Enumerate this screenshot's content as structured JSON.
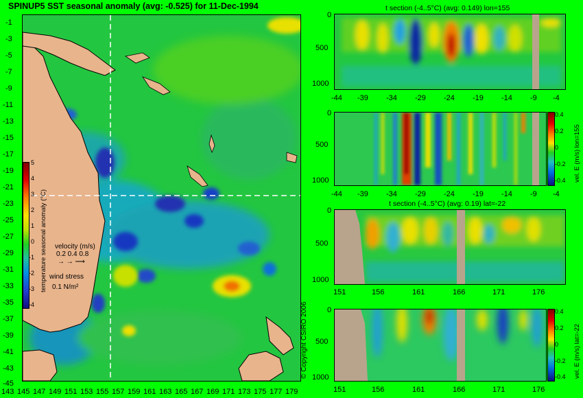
{
  "title": "SPINUP5 SST seasonal anomaly (avg: -0.525) for 11-Dec-1994",
  "colors": {
    "page_bg": "#00ff00",
    "ocean_base": "#23c640",
    "land": "#e8b48c",
    "cold": "#1e2ab4",
    "cool": "#00a0e0",
    "warm": "#ffe000",
    "hot": "#e02000"
  },
  "map": {
    "y_ticks": [
      "-1",
      "-3",
      "-5",
      "-7",
      "-9",
      "-11",
      "-13",
      "-15",
      "-17",
      "-19",
      "-21",
      "-23",
      "-25",
      "-27",
      "-29",
      "-31",
      "-33",
      "-35",
      "-37",
      "-39",
      "-41",
      "-43",
      "-45"
    ],
    "x_ticks": [
      "143",
      "145",
      "147",
      "149",
      "151",
      "153",
      "155",
      "157",
      "159",
      "161",
      "163",
      "165",
      "167",
      "169",
      "171",
      "173",
      "175",
      "177",
      "179"
    ],
    "colorbar_ticks": [
      "5",
      "4",
      "3",
      "2",
      "1",
      "0",
      "-1",
      "-2",
      "-3",
      "-4"
    ],
    "colorbar_label": "temperature seasonal anomaly (°C)",
    "velocity_label": "velocity (m/s)",
    "velocity_values": "0.2 0.4 0.8",
    "wind_label": "wind stress",
    "wind_value": "0.1 N/m²"
  },
  "copyright": "© Copyright CSIRO 2006",
  "panels": [
    {
      "title": "t section (-4..5°C) (avg: 0.149) lon=155",
      "y_ticks": [
        "0",
        "500",
        "1000"
      ],
      "x_ticks": [
        "-44",
        "-39",
        "-34",
        "-29",
        "-24",
        "-19",
        "-14",
        "-9",
        "-4"
      ]
    },
    {
      "title": "",
      "y_ticks": [
        "0",
        "500",
        "1000"
      ],
      "x_ticks": [
        "-44",
        "-39",
        "-34",
        "-29",
        "-24",
        "-19",
        "-14",
        "-9",
        "-4"
      ],
      "colorbar_ticks": [
        "0.4",
        "0.2",
        "0",
        "-0.2",
        "-0.4"
      ],
      "side_label": "vel. E (m/s) lon=155"
    },
    {
      "title": "t section (-4..5°C) (avg: 0.19) lat=-22",
      "y_ticks": [
        "0",
        "500",
        "1000"
      ],
      "x_ticks": [
        "151",
        "156",
        "161",
        "166",
        "171",
        "176"
      ]
    },
    {
      "title": "",
      "y_ticks": [
        "0",
        "500",
        "1000"
      ],
      "x_ticks": [
        "151",
        "156",
        "161",
        "166",
        "171",
        "176"
      ],
      "colorbar_ticks": [
        "0.4",
        "0.2",
        "0",
        "-0.2",
        "-0.4"
      ],
      "side_label": "vel. E (m/s) lat=-22"
    }
  ]
}
